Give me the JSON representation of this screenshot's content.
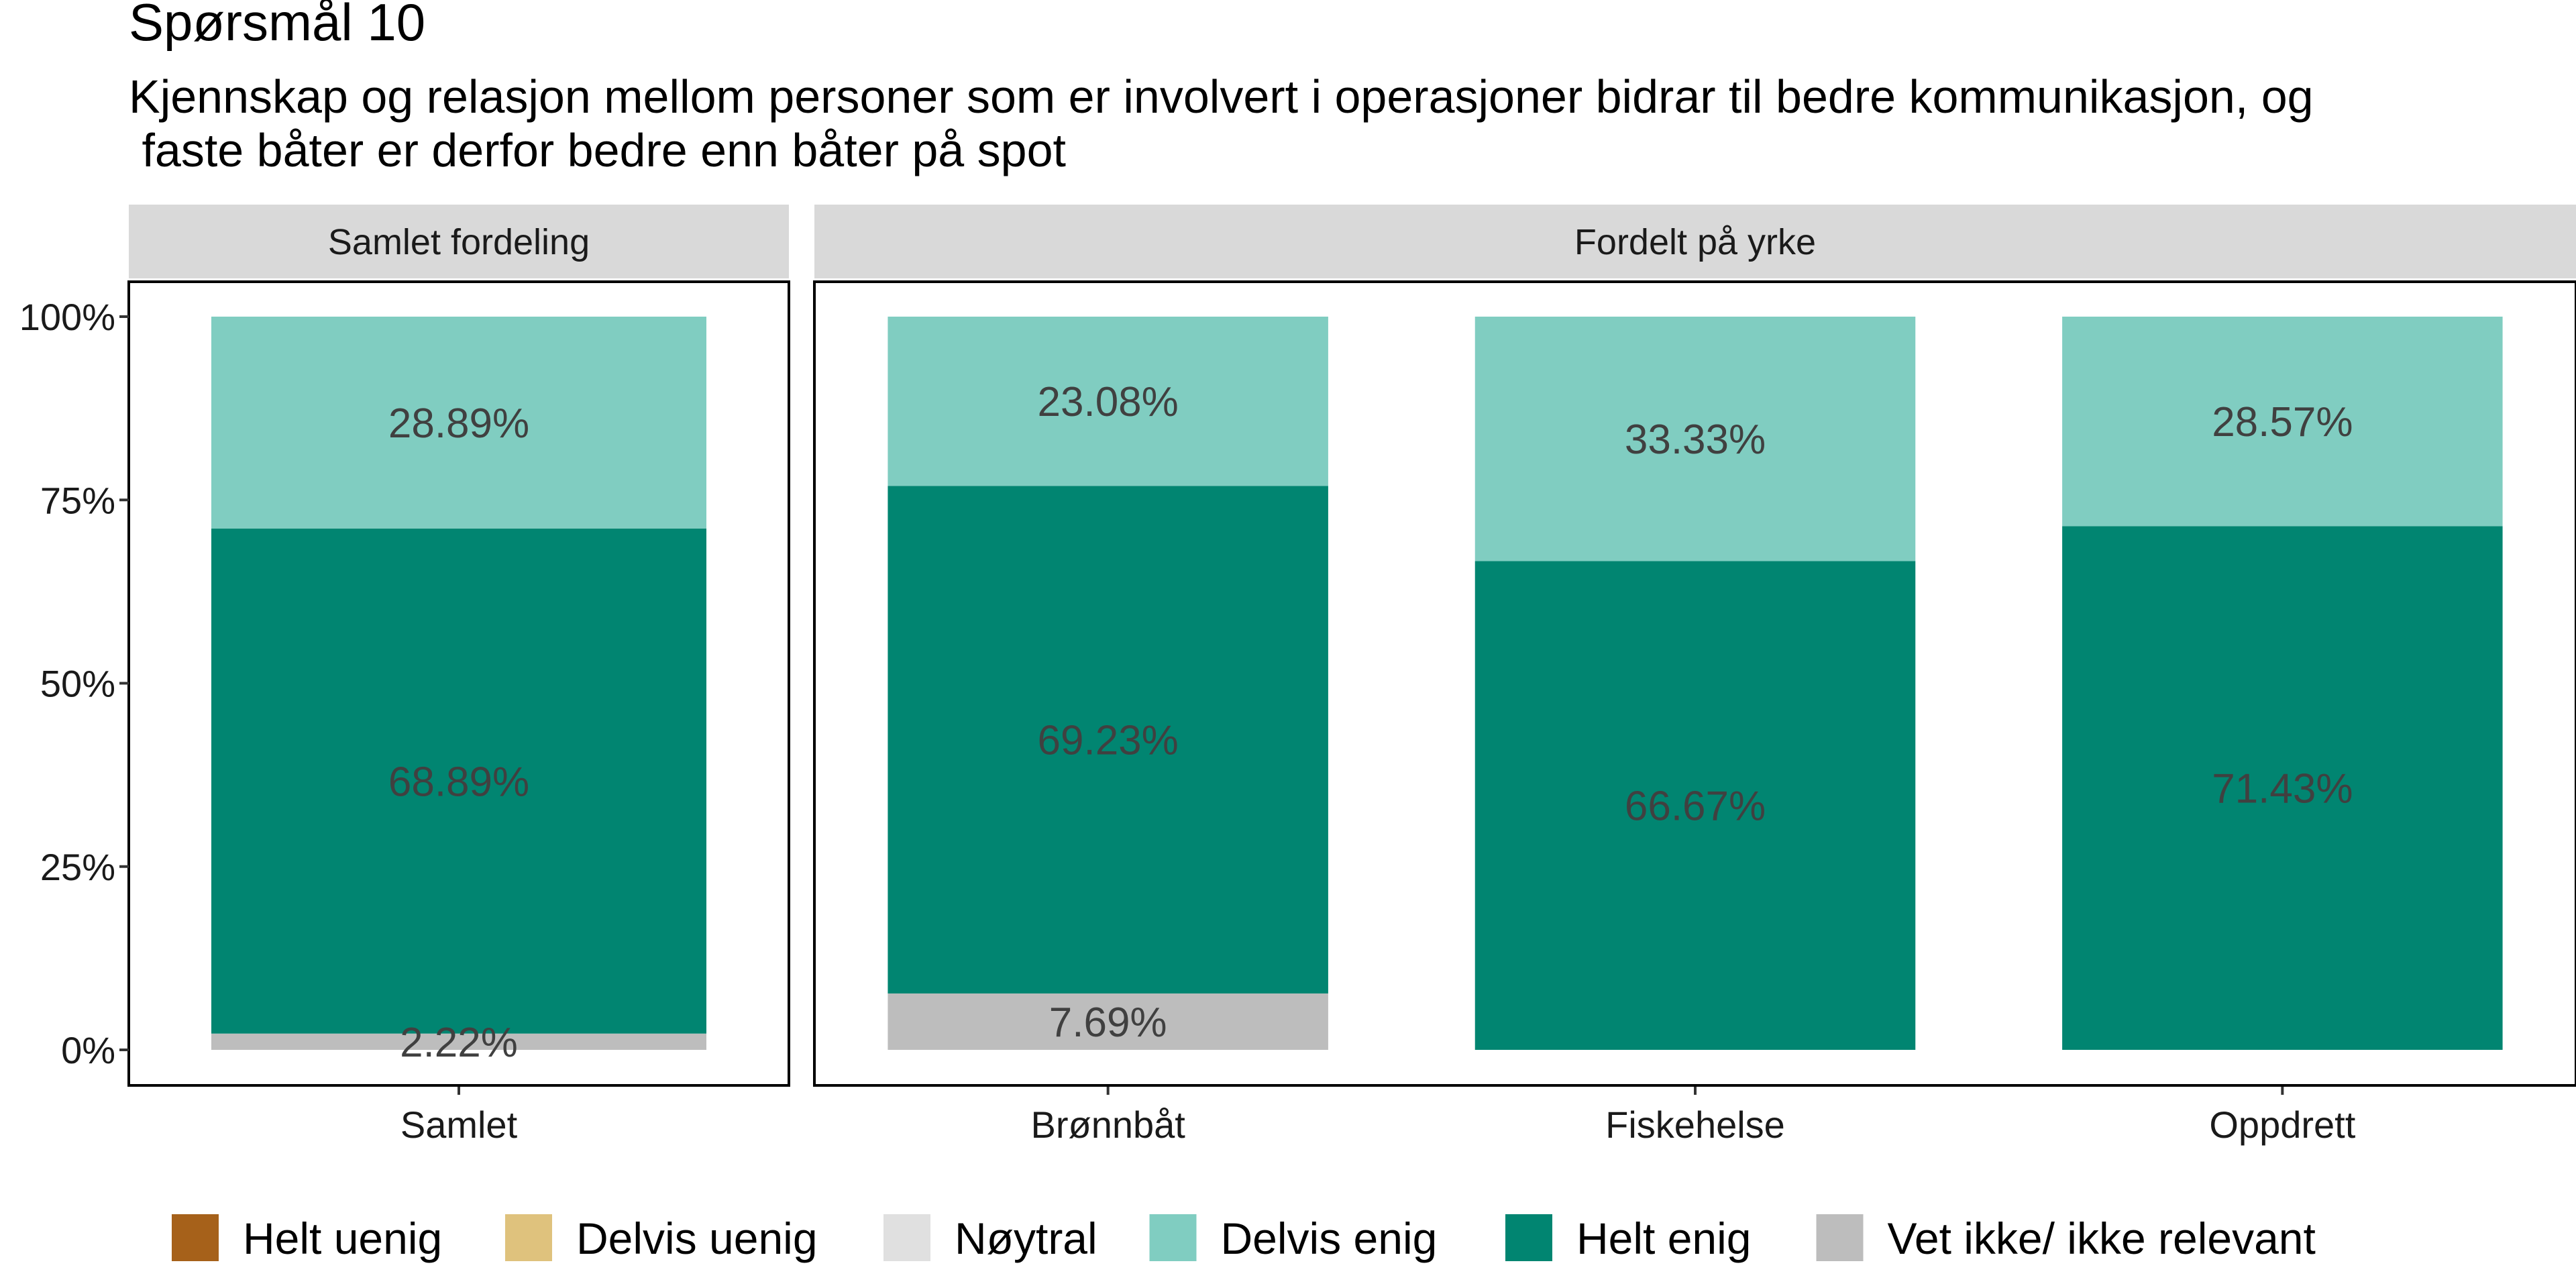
{
  "chart_data": {
    "type": "bar",
    "stacked": true,
    "title": "Spørsmål 10",
    "subtitle": [
      "Kjennskap og relasjon mellom personer som er involvert i operasjoner bidrar til bedre kommunikasjon, og",
      " faste båter er derfor bedre enn båter på spot"
    ],
    "ylim": [
      0,
      100
    ],
    "y_ticks": [
      0,
      25,
      50,
      75,
      100
    ],
    "y_tick_labels": [
      "0%",
      "25%",
      "50%",
      "75%",
      "100%"
    ],
    "legend_position": "bottom",
    "legend": [
      {
        "name": "Helt uenig",
        "color": "#A6611A"
      },
      {
        "name": "Delvis uenig",
        "color": "#DFC27D"
      },
      {
        "name": "Nøytral",
        "color": "#E0E0E0"
      },
      {
        "name": "Delvis enig",
        "color": "#80CDC1"
      },
      {
        "name": "Helt enig",
        "color": "#018571"
      },
      {
        "name": "Vet ikke/ ikke relevant",
        "color": "#BDBDBD"
      }
    ],
    "stack_order": [
      "Vet ikke/ ikke relevant",
      "Helt enig",
      "Delvis enig"
    ],
    "panels": [
      {
        "strip": "Samlet fordeling",
        "categories": [
          "Samlet"
        ],
        "series": [
          {
            "name": "Vet ikke/ ikke relevant",
            "values": [
              2.22
            ],
            "labels": [
              "2.22%"
            ]
          },
          {
            "name": "Helt enig",
            "values": [
              68.89
            ],
            "labels": [
              "68.89%"
            ]
          },
          {
            "name": "Delvis enig",
            "values": [
              28.89
            ],
            "labels": [
              "28.89%"
            ]
          }
        ]
      },
      {
        "strip": "Fordelt på yrke",
        "categories": [
          "Brønnbåt",
          "Fiskehelse",
          "Oppdrett"
        ],
        "series": [
          {
            "name": "Vet ikke/ ikke relevant",
            "values": [
              7.69,
              0,
              0
            ],
            "labels": [
              "7.69%",
              "",
              ""
            ]
          },
          {
            "name": "Helt enig",
            "values": [
              69.23,
              66.67,
              71.43
            ],
            "labels": [
              "69.23%",
              "66.67%",
              "71.43%"
            ]
          },
          {
            "name": "Delvis enig",
            "values": [
              23.08,
              33.33,
              28.57
            ],
            "labels": [
              "23.08%",
              "33.33%",
              "28.57%"
            ]
          }
        ]
      }
    ]
  }
}
